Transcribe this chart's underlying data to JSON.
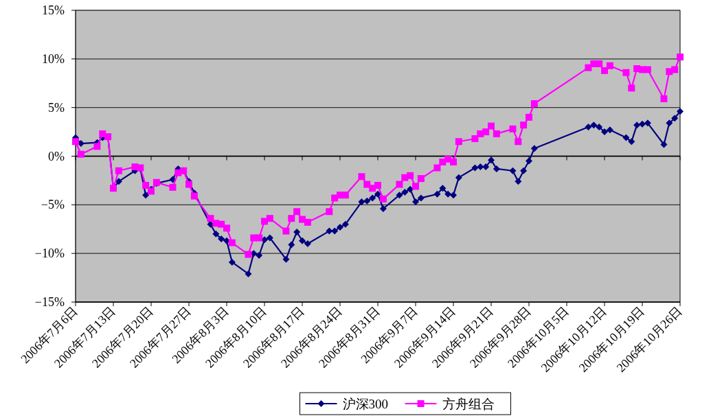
{
  "chart_data": {
    "type": "line",
    "x": [
      "2006-07-06",
      "2006-07-07",
      "2006-07-10",
      "2006-07-11",
      "2006-07-12",
      "2006-07-13",
      "2006-07-14",
      "2006-07-17",
      "2006-07-18",
      "2006-07-19",
      "2006-07-20",
      "2006-07-21",
      "2006-07-24",
      "2006-07-25",
      "2006-07-26",
      "2006-07-27",
      "2006-07-28",
      "2006-07-31",
      "2006-08-01",
      "2006-08-02",
      "2006-08-03",
      "2006-08-04",
      "2006-08-07",
      "2006-08-08",
      "2006-08-09",
      "2006-08-10",
      "2006-08-11",
      "2006-08-14",
      "2006-08-15",
      "2006-08-16",
      "2006-08-17",
      "2006-08-18",
      "2006-08-22",
      "2006-08-23",
      "2006-08-24",
      "2006-08-25",
      "2006-08-28",
      "2006-08-29",
      "2006-08-30",
      "2006-08-31",
      "2006-09-01",
      "2006-09-04",
      "2006-09-05",
      "2006-09-06",
      "2006-09-07",
      "2006-09-08",
      "2006-09-11",
      "2006-09-12",
      "2006-09-13",
      "2006-09-14",
      "2006-09-15",
      "2006-09-18",
      "2006-09-19",
      "2006-09-20",
      "2006-09-21",
      "2006-09-22",
      "2006-09-25",
      "2006-09-26",
      "2006-09-27",
      "2006-09-28",
      "2006-09-29",
      "2006-10-09",
      "2006-10-10",
      "2006-10-11",
      "2006-10-12",
      "2006-10-13",
      "2006-10-16",
      "2006-10-17",
      "2006-10-18",
      "2006-10-19",
      "2006-10-20",
      "2006-10-23",
      "2006-10-24",
      "2006-10-25",
      "2006-10-26"
    ],
    "series": [
      {
        "name": "沪深300",
        "color": "#000080",
        "marker": "diamond",
        "values": [
          1.9,
          1.3,
          1.4,
          1.9,
          2.0,
          -3.3,
          -2.6,
          -1.5,
          -1.3,
          -4.0,
          -3.4,
          -2.8,
          -2.4,
          -1.3,
          -1.5,
          -2.6,
          -3.8,
          -7.0,
          -8.0,
          -8.5,
          -8.7,
          -10.9,
          -12.1,
          -10.0,
          -10.2,
          -8.6,
          -8.4,
          -10.6,
          -9.1,
          -7.8,
          -8.7,
          -9.0,
          -7.7,
          -7.7,
          -7.3,
          -7.0,
          -4.7,
          -4.6,
          -4.3,
          -3.9,
          -5.4,
          -4.0,
          -3.7,
          -3.4,
          -4.7,
          -4.3,
          -3.9,
          -3.3,
          -3.9,
          -4.0,
          -2.2,
          -1.2,
          -1.1,
          -1.1,
          -0.4,
          -1.3,
          -1.5,
          -2.6,
          -1.5,
          -0.5,
          0.8,
          3.0,
          3.2,
          3.0,
          2.5,
          2.7,
          1.9,
          1.5,
          3.2,
          3.3,
          3.4,
          1.2,
          3.4,
          3.9,
          4.6
        ]
      },
      {
        "name": "方舟组合",
        "color": "#ff00ff",
        "marker": "square",
        "values": [
          1.5,
          0.2,
          1.0,
          2.3,
          2.0,
          -3.3,
          -1.5,
          -1.1,
          -1.2,
          -3.0,
          -3.6,
          -2.7,
          -3.2,
          -1.7,
          -1.5,
          -2.9,
          -4.1,
          -6.4,
          -6.9,
          -7.0,
          -7.4,
          -8.9,
          -10.1,
          -8.4,
          -8.4,
          -6.7,
          -6.4,
          -7.7,
          -6.4,
          -5.7,
          -6.5,
          -6.8,
          -5.7,
          -4.3,
          -4.0,
          -4.0,
          -2.1,
          -2.9,
          -3.3,
          -3.0,
          -4.4,
          -2.9,
          -2.2,
          -2.0,
          -3.1,
          -2.3,
          -1.2,
          -0.6,
          -0.3,
          -0.6,
          1.5,
          1.8,
          2.3,
          2.5,
          3.1,
          2.3,
          2.8,
          1.5,
          3.2,
          4.0,
          5.4,
          9.1,
          9.5,
          9.5,
          8.8,
          9.3,
          8.6,
          7.0,
          9.0,
          8.9,
          8.9,
          5.9,
          8.7,
          8.9,
          10.2
        ]
      }
    ],
    "xlim": [
      "2006-07-06",
      "2006-10-26"
    ],
    "xticks": [
      {
        "value": "2006-07-06",
        "label": "2006年7月6日"
      },
      {
        "value": "2006-07-13",
        "label": "2006年7月13日"
      },
      {
        "value": "2006-07-20",
        "label": "2006年7月20日"
      },
      {
        "value": "2006-07-27",
        "label": "2006年7月27日"
      },
      {
        "value": "2006-08-03",
        "label": "2006年8月3日"
      },
      {
        "value": "2006-08-10",
        "label": "2006年8月10日"
      },
      {
        "value": "2006-08-17",
        "label": "2006年8月17日"
      },
      {
        "value": "2006-08-24",
        "label": "2006年8月24日"
      },
      {
        "value": "2006-08-31",
        "label": "2006年8月31日"
      },
      {
        "value": "2006-09-07",
        "label": "2006年9月7日"
      },
      {
        "value": "2006-09-14",
        "label": "2006年9月14日"
      },
      {
        "value": "2006-09-21",
        "label": "2006年9月21日"
      },
      {
        "value": "2006-09-28",
        "label": "2006年9月28日"
      },
      {
        "value": "2006-10-05",
        "label": "2006年10月5日"
      },
      {
        "value": "2006-10-12",
        "label": "2006年10月12日"
      },
      {
        "value": "2006-10-19",
        "label": "2006年10月19日"
      },
      {
        "value": "2006-10-26",
        "label": "2006年10月26日"
      }
    ],
    "ylim": [
      -15,
      15
    ],
    "yticks": [
      {
        "value": 15,
        "label": "15%"
      },
      {
        "value": 10,
        "label": "10%"
      },
      {
        "value": 5,
        "label": "5%"
      },
      {
        "value": 0,
        "label": "0%"
      },
      {
        "value": -5,
        "label": "−5%"
      },
      {
        "value": -10,
        "label": "−10%"
      },
      {
        "value": -15,
        "label": "−15%"
      }
    ],
    "grid": "y",
    "legend": "bottom"
  }
}
